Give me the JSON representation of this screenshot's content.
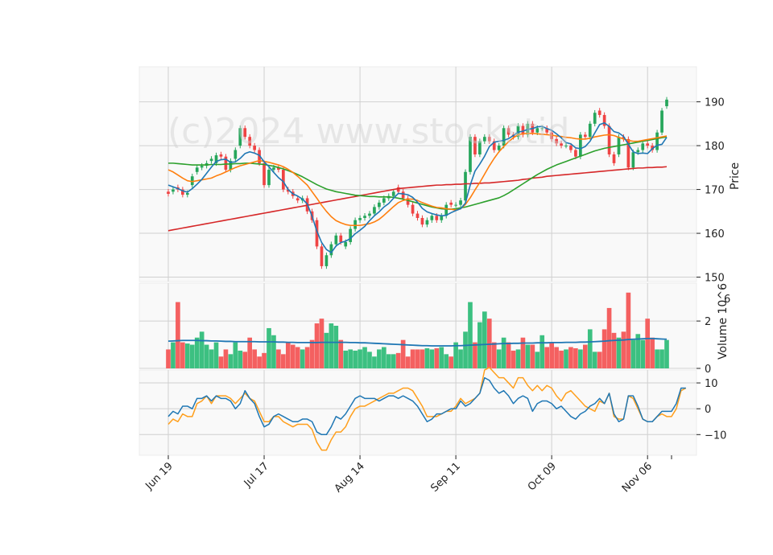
{
  "watermark": "(c)2024 www.stockstid",
  "chart_data": {
    "type": "candlestick",
    "x_tick_labels": [
      "Jun 19",
      "Jul 17",
      "Aug 14",
      "Sep 11",
      "Oct 09",
      "Nov 06"
    ],
    "price_panel": {
      "ylabel": "Price",
      "ylim": [
        149,
        198
      ],
      "yticks": [
        150,
        160,
        170,
        180,
        190
      ],
      "close": [
        169.0,
        170.0,
        170.0,
        168.8,
        169.2,
        173.0,
        175.0,
        175.4,
        176.0,
        177.0,
        177.8,
        177.5,
        174.5,
        176.5,
        179.0,
        184.0,
        182.0,
        180.0,
        179.0,
        176.0,
        171.0,
        174.5,
        175.0,
        174.5,
        170.0,
        169.5,
        168.5,
        167.5,
        168.0,
        165.0,
        163.0,
        157.0,
        152.5,
        155.0,
        157.5,
        159.5,
        158.0,
        158.0,
        161.0,
        163.0,
        163.5,
        164.0,
        164.5,
        166.0,
        167.0,
        168.0,
        168.5,
        169.5,
        169.5,
        168.0,
        166.5,
        164.5,
        163.5,
        162.0,
        163.0,
        164.0,
        163.0,
        164.0,
        166.5,
        166.5,
        166.5,
        167.5,
        174.0,
        182.0,
        178.0,
        181.0,
        182.0,
        181.0,
        179.0,
        180.0,
        184.0,
        182.5,
        182.0,
        184.5,
        182.5,
        185.0,
        183.0,
        184.0,
        184.0,
        183.0,
        181.5,
        180.5,
        180.0,
        180.0,
        179.0,
        177.5,
        182.5,
        182.0,
        185.0,
        187.5,
        187.0,
        184.5,
        178.0,
        176.0,
        182.0,
        181.5,
        175.0,
        178.5,
        179.0,
        180.5,
        180.0,
        179.0,
        183.0,
        188.0,
        190.5
      ],
      "open": [
        169.5,
        169.5,
        170.5,
        170.0,
        168.8,
        171.0,
        174.0,
        175.0,
        175.4,
        176.5,
        176.0,
        178.0,
        177.5,
        174.5,
        177.0,
        180.0,
        184.0,
        182.0,
        180.0,
        179.0,
        176.0,
        171.0,
        174.5,
        175.0,
        174.5,
        170.0,
        169.5,
        168.0,
        167.5,
        168.0,
        165.0,
        163.0,
        157.0,
        152.5,
        155.0,
        157.5,
        159.5,
        157.0,
        158.0,
        161.0,
        163.0,
        163.5,
        164.0,
        164.5,
        166.0,
        167.0,
        168.0,
        168.5,
        170.5,
        169.5,
        168.0,
        166.5,
        164.5,
        163.5,
        162.0,
        163.0,
        164.0,
        163.0,
        164.0,
        167.0,
        166.5,
        166.5,
        167.5,
        174.0,
        182.0,
        178.0,
        181.0,
        182.0,
        181.0,
        179.0,
        180.0,
        184.0,
        182.5,
        182.0,
        184.5,
        182.5,
        185.0,
        183.0,
        184.0,
        184.0,
        183.0,
        181.5,
        180.5,
        180.0,
        180.0,
        179.0,
        177.5,
        182.5,
        182.0,
        185.0,
        188.0,
        187.0,
        184.5,
        178.0,
        178.0,
        182.0,
        181.5,
        175.0,
        178.5,
        179.0,
        180.5,
        180.0,
        179.0,
        183.0,
        189.0
      ],
      "sma_5": [
        171.0,
        170.6,
        170.2,
        169.7,
        169.4,
        170.2,
        171.2,
        172.3,
        173.7,
        175.1,
        176.4,
        176.8,
        176.9,
        176.2,
        176.3,
        177.1,
        178.2,
        178.6,
        178.3,
        177.8,
        176.3,
        175.2,
        173.9,
        172.7,
        171.8,
        170.0,
        169.0,
        168.5,
        167.8,
        166.7,
        163.9,
        160.5,
        157.9,
        156.3,
        155.6,
        157.1,
        157.9,
        158.2,
        158.8,
        159.9,
        160.7,
        161.6,
        162.9,
        164.0,
        164.9,
        166.0,
        166.8,
        168.0,
        169.1,
        169.0,
        168.8,
        168.2,
        167.1,
        165.7,
        164.9,
        164.5,
        164.2,
        164.0,
        164.1,
        164.7,
        165.2,
        165.6,
        166.9,
        171.0,
        174.2,
        175.8,
        177.6,
        179.8,
        180.8,
        181.0,
        181.2,
        181.6,
        182.3,
        183.1,
        183.3,
        183.7,
        183.9,
        184.3,
        184.4,
        183.9,
        183.5,
        182.7,
        181.8,
        180.7,
        180.4,
        179.5,
        179.3,
        179.8,
        181.0,
        182.9,
        184.8,
        185.2,
        184.4,
        183.2,
        182.9,
        182.1,
        180.3,
        178.6,
        178.2,
        178.3,
        178.2,
        179.3,
        180.1,
        180.3,
        181.9
      ],
      "sma_10": [
        174.5,
        174.0,
        173.3,
        172.6,
        172.0,
        171.8,
        172.0,
        172.2,
        172.4,
        172.6,
        173.1,
        173.5,
        174.0,
        174.5,
        175.0,
        175.4,
        175.7,
        176.0,
        176.3,
        176.6,
        176.4,
        176.2,
        175.9,
        175.6,
        175.2,
        174.6,
        173.9,
        173.0,
        172.0,
        171.0,
        169.5,
        168.0,
        166.4,
        165.0,
        163.8,
        162.9,
        162.4,
        162.0,
        161.8,
        161.8,
        161.8,
        162.0,
        162.2,
        162.6,
        163.2,
        164.1,
        165.1,
        166.1,
        167.0,
        167.5,
        167.8,
        167.8,
        167.5,
        167.0,
        166.6,
        166.2,
        165.9,
        165.8,
        165.6,
        165.5,
        165.3,
        165.6,
        166.6,
        168.1,
        169.9,
        171.6,
        173.5,
        175.4,
        177.1,
        178.6,
        179.8,
        180.9,
        181.8,
        182.5,
        182.7,
        182.8,
        182.8,
        182.7,
        182.6,
        182.5,
        182.4,
        182.2,
        182.1,
        181.9,
        181.8,
        181.6,
        181.5,
        181.5,
        181.7,
        182.0,
        182.2,
        182.4,
        182.5,
        182.3,
        181.9,
        181.5,
        181.2,
        181.0,
        181.0,
        181.2,
        181.4,
        181.6,
        181.8,
        182.0,
        182.2
      ],
      "sma_25": [
        176.0,
        176.0,
        175.9,
        175.8,
        175.7,
        175.6,
        175.6,
        175.6,
        175.6,
        175.7,
        175.7,
        175.7,
        175.8,
        175.8,
        175.9,
        175.9,
        176.0,
        176.0,
        175.9,
        175.8,
        175.7,
        175.5,
        175.3,
        175.0,
        174.7,
        174.3,
        173.9,
        173.4,
        172.9,
        172.3,
        171.7,
        171.1,
        170.6,
        170.1,
        169.8,
        169.5,
        169.3,
        169.1,
        168.9,
        168.7,
        168.6,
        168.5,
        168.4,
        168.4,
        168.3,
        168.3,
        168.3,
        168.2,
        168.0,
        167.8,
        167.5,
        167.2,
        166.9,
        166.6,
        166.3,
        166.0,
        165.8,
        165.6,
        165.5,
        165.5,
        165.6,
        165.8,
        166.0,
        166.3,
        166.6,
        166.9,
        167.2,
        167.5,
        167.8,
        168.1,
        168.6,
        169.2,
        169.9,
        170.6,
        171.3,
        172.0,
        172.7,
        173.4,
        174.0,
        174.6,
        175.1,
        175.6,
        176.0,
        176.4,
        176.8,
        177.2,
        177.6,
        178.0,
        178.4,
        178.8,
        179.1,
        179.4,
        179.6,
        179.8,
        180.0,
        180.2,
        180.4,
        180.6,
        180.8,
        181.0,
        181.2,
        181.4,
        181.6,
        181.8,
        182.0
      ],
      "sma_75": [
        160.6,
        160.8,
        161.0,
        161.2,
        161.4,
        161.6,
        161.8,
        162.0,
        162.2,
        162.4,
        162.6,
        162.8,
        163.0,
        163.2,
        163.4,
        163.6,
        163.8,
        164.0,
        164.2,
        164.4,
        164.6,
        164.8,
        165.0,
        165.2,
        165.4,
        165.6,
        165.8,
        166.0,
        166.2,
        166.4,
        166.6,
        166.8,
        167.0,
        167.2,
        167.4,
        167.6,
        167.8,
        168.0,
        168.2,
        168.4,
        168.6,
        168.8,
        169.0,
        169.2,
        169.4,
        169.6,
        169.8,
        170.0,
        170.2,
        170.3,
        170.4,
        170.5,
        170.6,
        170.7,
        170.8,
        170.9,
        171.0,
        171.0,
        171.1,
        171.1,
        171.2,
        171.2,
        171.3,
        171.3,
        171.4,
        171.4,
        171.5,
        171.5,
        171.6,
        171.7,
        171.8,
        171.9,
        172.0,
        172.1,
        172.3,
        172.4,
        172.6,
        172.7,
        172.8,
        173.0,
        173.1,
        173.2,
        173.3,
        173.4,
        173.5,
        173.6,
        173.7,
        173.8,
        173.9,
        174.0,
        174.1,
        174.2,
        174.3,
        174.4,
        174.5,
        174.6,
        174.7,
        174.8,
        174.9,
        174.9,
        175.0,
        175.0,
        175.1,
        175.1,
        175.2
      ]
    },
    "volume_panel": {
      "ylabel": "Volume  10^6",
      "ylim": [
        0,
        3.6
      ],
      "yticks": [
        0,
        2
      ],
      "values": [
        0.8,
        1.1,
        2.8,
        1.1,
        1.05,
        1.0,
        1.3,
        1.55,
        1.0,
        0.8,
        1.1,
        0.5,
        0.8,
        0.6,
        1.1,
        0.75,
        0.7,
        1.3,
        0.8,
        0.5,
        0.65,
        1.7,
        1.4,
        0.8,
        0.6,
        1.1,
        1.0,
        0.9,
        0.8,
        0.9,
        1.2,
        1.9,
        2.1,
        1.5,
        1.9,
        1.8,
        1.2,
        0.75,
        0.8,
        0.75,
        0.8,
        0.9,
        0.7,
        0.5,
        0.8,
        0.9,
        0.6,
        0.6,
        0.65,
        1.2,
        0.5,
        0.8,
        0.8,
        0.8,
        0.85,
        0.8,
        0.85,
        0.9,
        0.6,
        0.5,
        1.1,
        0.8,
        1.55,
        2.8,
        1.1,
        1.95,
        2.4,
        2.1,
        1.1,
        0.8,
        1.3,
        1.1,
        0.75,
        0.8,
        1.3,
        1.0,
        1.0,
        0.7,
        1.4,
        0.9,
        1.1,
        0.9,
        0.75,
        0.8,
        0.9,
        0.85,
        0.8,
        1.0,
        1.65,
        0.7,
        0.7,
        1.65,
        2.55,
        1.5,
        1.3,
        1.55,
        3.2,
        1.2,
        1.45,
        1.2,
        2.1,
        1.3,
        0.8,
        0.8,
        1.2
      ],
      "ma": [
        1.15,
        1.16,
        1.17,
        1.18,
        1.18,
        1.18,
        1.18,
        1.17,
        1.17,
        1.16,
        1.16,
        1.15,
        1.14,
        1.14,
        1.13,
        1.13,
        1.13,
        1.13,
        1.13,
        1.12,
        1.12,
        1.12,
        1.12,
        1.11,
        1.11,
        1.1,
        1.1,
        1.09,
        1.09,
        1.09,
        1.09,
        1.09,
        1.1,
        1.1,
        1.1,
        1.1,
        1.1,
        1.1,
        1.09,
        1.09,
        1.08,
        1.08,
        1.07,
        1.06,
        1.05,
        1.04,
        1.03,
        1.02,
        1.01,
        1.0,
        0.99,
        0.98,
        0.97,
        0.96,
        0.96,
        0.95,
        0.95,
        0.95,
        0.95,
        0.95,
        0.96,
        0.96,
        0.97,
        0.98,
        0.99,
        1.0,
        1.01,
        1.02,
        1.03,
        1.04,
        1.05,
        1.05,
        1.06,
        1.06,
        1.07,
        1.07,
        1.07,
        1.08,
        1.08,
        1.08,
        1.09,
        1.09,
        1.09,
        1.1,
        1.1,
        1.1,
        1.11,
        1.11,
        1.12,
        1.13,
        1.14,
        1.15,
        1.17,
        1.18,
        1.19,
        1.2,
        1.22,
        1.23,
        1.24,
        1.25,
        1.26,
        1.26,
        1.25,
        1.24,
        1.23
      ]
    },
    "oscillator_panel": {
      "ylim": [
        -18,
        15
      ],
      "yticks": [
        -10,
        0,
        10
      ],
      "series": [
        {
          "color": "#1f77b4",
          "values": [
            -3,
            -1,
            -2,
            1,
            1,
            0,
            4,
            4,
            5,
            3,
            5,
            4,
            4,
            3,
            0,
            2,
            7,
            4,
            2,
            -3,
            -7,
            -6,
            -3,
            -2,
            -3,
            -4,
            -5,
            -5,
            -4,
            -4,
            -5,
            -9,
            -10,
            -10,
            -7,
            -3,
            -4,
            -2,
            1,
            4,
            5,
            4,
            4,
            4,
            3,
            4,
            5,
            5,
            4,
            5,
            4,
            3,
            1,
            -2,
            -5,
            -4,
            -2,
            -2,
            -1,
            0,
            0,
            3,
            1,
            2,
            4,
            6,
            12,
            11,
            8,
            6,
            7,
            5,
            2,
            4,
            5,
            4,
            -1,
            2,
            3,
            3,
            2,
            0,
            1,
            -1,
            -3,
            -4,
            -2,
            -1,
            1,
            2,
            4,
            2,
            6,
            -2,
            -5,
            -4,
            5,
            5,
            1,
            -4,
            -5,
            -5,
            -3,
            -1,
            -1,
            -1,
            2,
            8,
            8
          ],
          "name": ""
        },
        {
          "color": "#ff9f1c",
          "values": [
            -6,
            -4,
            -5,
            -2,
            -3,
            -3,
            2,
            3,
            5,
            2,
            5,
            5,
            5,
            4,
            2,
            4,
            6,
            4,
            3,
            -1,
            -5,
            -5,
            -3,
            -3,
            -5,
            -6,
            -7,
            -6,
            -6,
            -6,
            -8,
            -13,
            -16,
            -16,
            -12,
            -9,
            -9,
            -7,
            -3,
            0,
            1,
            1,
            2,
            3,
            4,
            5,
            6,
            6,
            7,
            8,
            8,
            7,
            4,
            1,
            -3,
            -3,
            -3,
            -2,
            -1,
            -1,
            1,
            4,
            2,
            3,
            4,
            6,
            15,
            16,
            14,
            12,
            12,
            10,
            8,
            12,
            12,
            9,
            7,
            9,
            7,
            9,
            8,
            5,
            3,
            6,
            7,
            5,
            3,
            1,
            0,
            -1,
            3,
            2,
            6,
            -3,
            -4,
            -4,
            5,
            4,
            0,
            -4,
            -5,
            -5,
            -3,
            -2,
            -3,
            -3,
            0,
            7,
            8
          ],
          "name": ""
        }
      ]
    }
  }
}
